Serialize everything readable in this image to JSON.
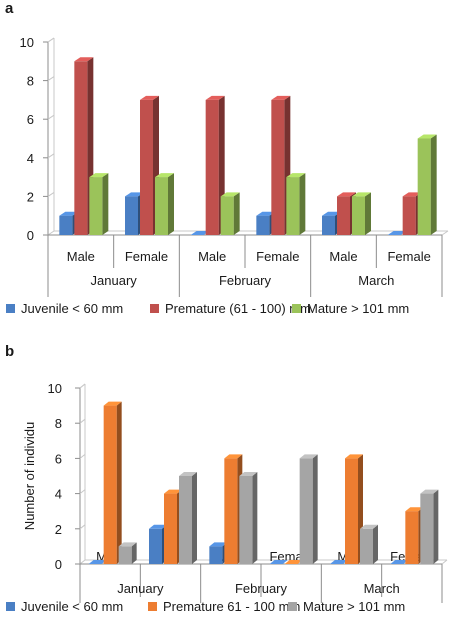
{
  "panels": {
    "a": {
      "letter": "a"
    },
    "b": {
      "letter": "b"
    }
  },
  "chart_data": [
    {
      "type": "bar",
      "panel": "a",
      "categories": [
        "Male",
        "Female",
        "Male",
        "Female",
        "Male",
        "Female"
      ],
      "groups": [
        "January",
        "February",
        "March"
      ],
      "ylim": [
        0,
        10
      ],
      "yticks": [
        0,
        2,
        4,
        6,
        8,
        10
      ],
      "ylabel": "",
      "grid": false,
      "legend": "bottom",
      "series": [
        {
          "name": "Juvenile < 60 mm",
          "color": "#4a7fc4",
          "values": [
            1,
            2,
            0,
            1,
            1,
            0
          ]
        },
        {
          "name": "Premature (61 - 100) mm",
          "color": "#c0504d",
          "values": [
            9,
            7,
            7,
            7,
            2,
            2
          ]
        },
        {
          "name": "Mature > 101 mm",
          "color": "#9bc35a",
          "values": [
            3,
            3,
            2,
            3,
            2,
            5
          ]
        }
      ]
    },
    {
      "type": "bar",
      "panel": "b",
      "categories": [
        "Male",
        "Female",
        "Male",
        "Female",
        "Male",
        "Female"
      ],
      "groups": [
        "January",
        "February",
        "March"
      ],
      "ylim": [
        0,
        10
      ],
      "yticks": [
        0,
        2,
        4,
        6,
        8,
        10
      ],
      "ylabel": "Number of individu",
      "grid": false,
      "legend": "bottom",
      "series": [
        {
          "name": "Juvenile < 60 mm",
          "color": "#4a7fc4",
          "values": [
            0,
            2,
            1,
            0,
            0,
            0
          ]
        },
        {
          "name": "Premature 61 - 100 mm",
          "color": "#ed7d31",
          "values": [
            9,
            4,
            6,
            0,
            6,
            3
          ]
        },
        {
          "name": "Mature > 101 mm",
          "color": "#a5a5a5",
          "values": [
            1,
            5,
            5,
            6,
            2,
            4
          ]
        }
      ]
    }
  ]
}
